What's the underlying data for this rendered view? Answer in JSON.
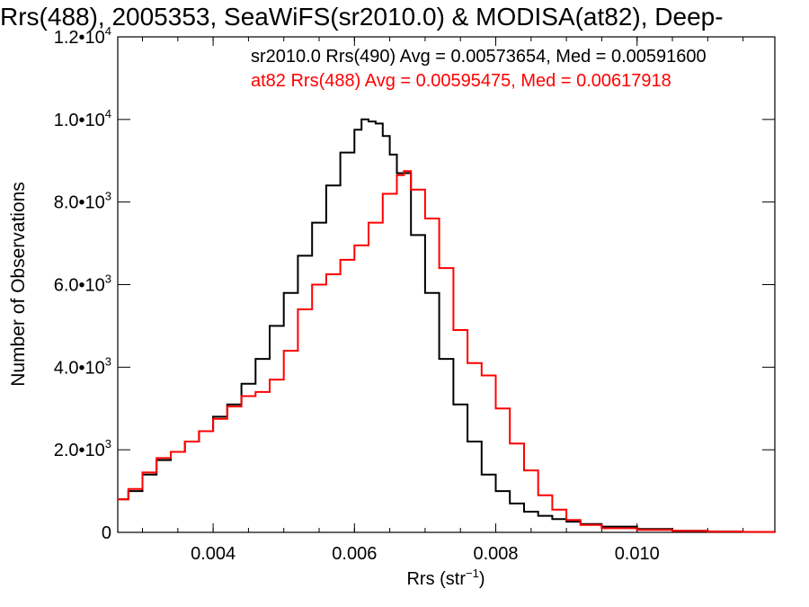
{
  "chart_data": {
    "type": "line",
    "title": "Rrs(488), 2005353, SeaWiFS(sr2010.0) & MODISA(at82), Deep-",
    "xlabel": "Rrs (str",
    "xlabel_sup": "−1",
    "xlabel_tail": ")",
    "ylabel": "Number of Observations",
    "xlim": [
      0.00265,
      0.01195
    ],
    "ylim": [
      0,
      12000
    ],
    "x_ticks": [
      {
        "value": 0.004,
        "label": "0.004"
      },
      {
        "value": 0.006,
        "label": "0.006"
      },
      {
        "value": 0.008,
        "label": "0.008"
      },
      {
        "value": 0.01,
        "label": "0.010"
      }
    ],
    "y_ticks": [
      {
        "value": 0,
        "mantissa": "0",
        "exp": ""
      },
      {
        "value": 2000,
        "mantissa": "2.0•10",
        "exp": "3"
      },
      {
        "value": 4000,
        "mantissa": "4.0•10",
        "exp": "3"
      },
      {
        "value": 6000,
        "mantissa": "6.0•10",
        "exp": "3"
      },
      {
        "value": 8000,
        "mantissa": "8.0•10",
        "exp": "3"
      },
      {
        "value": 10000,
        "mantissa": "1.0•10",
        "exp": "4"
      },
      {
        "value": 12000,
        "mantissa": "1.2•10",
        "exp": "4"
      }
    ],
    "annotations": [
      {
        "text": "sr2010.0 Rrs(490) Avg = 0.00573654, Med = 0.00591600",
        "color": "#000000"
      },
      {
        "text": "at82 Rrs(488) Avg = 0.00595475, Med = 0.00617918",
        "color": "#ff0000"
      }
    ],
    "series": [
      {
        "color": "#000000",
        "x": [
          0.00265,
          0.0028,
          0.003,
          0.0032,
          0.0034,
          0.0036,
          0.0038,
          0.004,
          0.0042,
          0.0044,
          0.0046,
          0.0048,
          0.005,
          0.0052,
          0.0054,
          0.0056,
          0.0058,
          0.006,
          0.0061,
          0.0062,
          0.0063,
          0.0064,
          0.0065,
          0.0066,
          0.0068,
          0.007,
          0.0072,
          0.0074,
          0.0076,
          0.0078,
          0.008,
          0.0082,
          0.0084,
          0.0086,
          0.0088,
          0.009,
          0.0092,
          0.0095,
          0.01,
          0.0105,
          0.011,
          0.0115,
          0.01195
        ],
        "y": [
          800,
          1000,
          1400,
          1750,
          1950,
          2200,
          2450,
          2800,
          3100,
          3600,
          4200,
          5000,
          5800,
          6700,
          7500,
          8400,
          9200,
          9750,
          10000,
          9950,
          9900,
          9600,
          9150,
          8700,
          7200,
          5800,
          4200,
          3100,
          2200,
          1400,
          1000,
          700,
          500,
          400,
          320,
          260,
          200,
          140,
          80,
          40,
          20,
          10,
          5
        ]
      },
      {
        "color": "#ff0000",
        "x": [
          0.00265,
          0.0028,
          0.003,
          0.0032,
          0.0034,
          0.0036,
          0.0038,
          0.004,
          0.0042,
          0.0044,
          0.0046,
          0.0048,
          0.005,
          0.0052,
          0.0054,
          0.0056,
          0.0058,
          0.006,
          0.0062,
          0.0064,
          0.0066,
          0.0067,
          0.0068,
          0.007,
          0.0072,
          0.0074,
          0.0076,
          0.0078,
          0.008,
          0.0082,
          0.0084,
          0.0086,
          0.0088,
          0.009,
          0.0092,
          0.0095,
          0.01,
          0.0105,
          0.011,
          0.0115,
          0.01195
        ],
        "y": [
          800,
          1050,
          1450,
          1800,
          1950,
          2200,
          2450,
          2750,
          3050,
          3300,
          3400,
          3700,
          4400,
          5400,
          6000,
          6250,
          6600,
          6950,
          7500,
          8200,
          8650,
          8750,
          8300,
          7600,
          6400,
          4900,
          4100,
          3800,
          3000,
          2150,
          1500,
          900,
          550,
          300,
          180,
          100,
          60,
          35,
          20,
          10,
          5
        ]
      }
    ]
  }
}
